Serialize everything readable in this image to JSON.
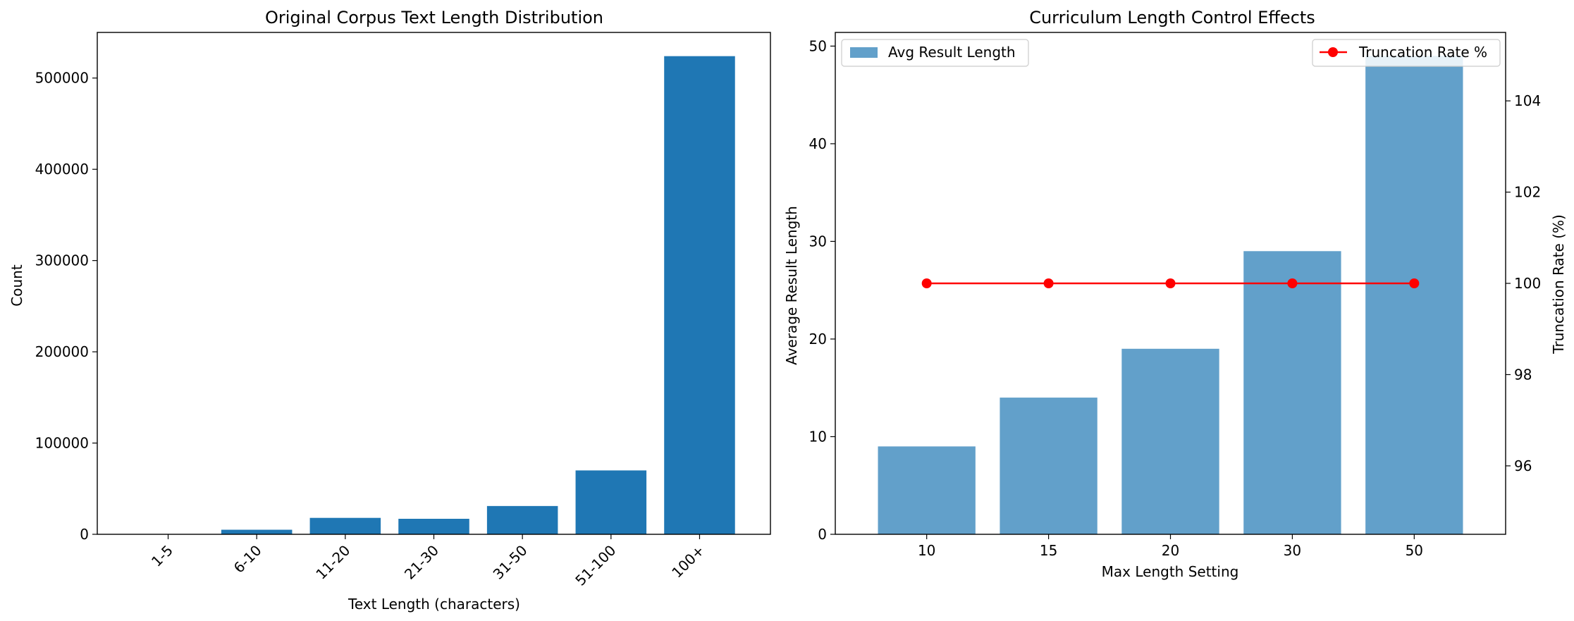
{
  "chart_data": [
    {
      "type": "bar",
      "title": "Original Corpus Text Length Distribution",
      "xlabel": "Text Length (characters)",
      "ylabel": "Count",
      "categories": [
        "1-5",
        "6-10",
        "11-20",
        "21-30",
        "31-50",
        "51-100",
        "100+"
      ],
      "values": [
        300,
        5000,
        18000,
        17000,
        31000,
        70000,
        524000
      ],
      "ylim": [
        0,
        550000
      ],
      "yticks": [
        0,
        100000,
        200000,
        300000,
        400000,
        500000
      ],
      "x_tick_rotation": 45,
      "grid": false,
      "bar_color": "#1f77b4"
    },
    {
      "type": "bar+line",
      "title": "Curriculum Length Control Effects",
      "xlabel": "Max Length Setting",
      "ylabel": "Average Result Length",
      "y2label": "Truncation Rate (%)",
      "categories": [
        "10",
        "15",
        "20",
        "30",
        "50"
      ],
      "series": [
        {
          "name": "Avg Result Length",
          "type": "bar",
          "axis": "left",
          "values": [
            9,
            14,
            19,
            29,
            49
          ],
          "color": "#1f77b4"
        },
        {
          "name": "Truncation Rate %",
          "type": "line",
          "axis": "right",
          "values": [
            100,
            100,
            100,
            100,
            100
          ],
          "color": "#ff0000"
        }
      ],
      "ylim": [
        0,
        51.4
      ],
      "yticks": [
        0,
        10,
        20,
        30,
        40,
        50
      ],
      "y2lim": [
        94.5,
        105.5
      ],
      "y2ticks": [
        96,
        98,
        100,
        102,
        104
      ],
      "legend_left": "upper-left",
      "legend_right": "upper-right",
      "grid": false
    }
  ]
}
